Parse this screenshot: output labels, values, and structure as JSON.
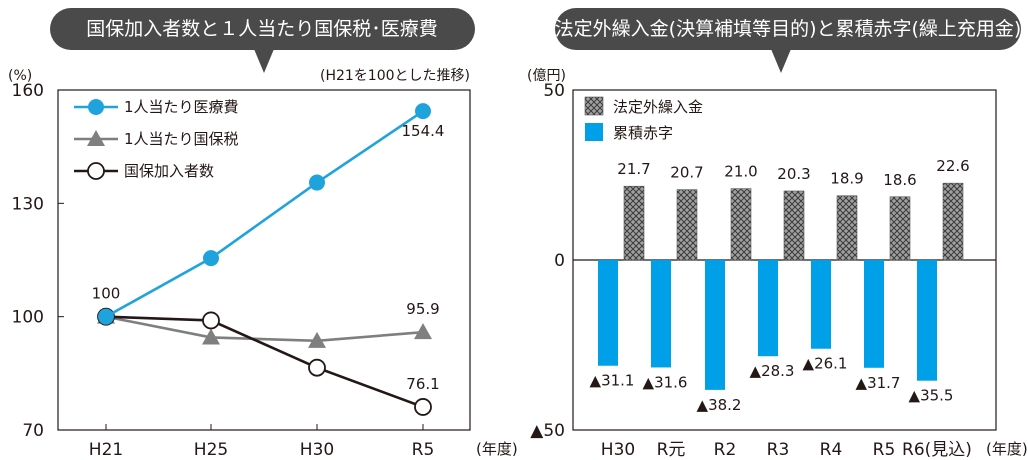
{
  "chart_data": [
    {
      "type": "line",
      "title": "国保加入者数と１人当たり国保税･医療費",
      "ylabel": "(%)",
      "note": "(H21を100とした推移)",
      "ylim": [
        70,
        160
      ],
      "yticks": [
        "70",
        "100",
        "130",
        "160"
      ],
      "categories": [
        "H21",
        "H25",
        "H30",
        "R5"
      ],
      "x_unit": "(年度)",
      "series": [
        {
          "name": "1人当たり医療費",
          "values": [
            100,
            115.5,
            135.5,
            154.4
          ],
          "color": "#1fa3dc",
          "marker": "circle"
        },
        {
          "name": "1人当たり国保税",
          "values": [
            100,
            94.5,
            93.6,
            95.9
          ],
          "color": "#7f7f7f",
          "marker": "triangle"
        },
        {
          "name": "国保加入者数",
          "values": [
            100,
            99.0,
            86.5,
            76.1
          ],
          "color": "#231815",
          "marker": "open-circle"
        }
      ],
      "data_labels": [
        {
          "series": 0,
          "index": 0,
          "text": "100"
        },
        {
          "series": 0,
          "index": 3,
          "text": "154.4"
        },
        {
          "series": 1,
          "index": 3,
          "text": "95.9"
        },
        {
          "series": 2,
          "index": 3,
          "text": "76.1"
        }
      ]
    },
    {
      "type": "bar",
      "title": "法定外繰入金(決算補填等目的)と累積赤字(繰上充用金)",
      "ylabel": "(億円)",
      "ylim": [
        -50,
        50
      ],
      "yticks": [
        "▲50",
        "0",
        "50"
      ],
      "categories": [
        "H30",
        "R元",
        "R2",
        "R3",
        "R4",
        "R5",
        "R6(見込)"
      ],
      "x_unit": "(年度)",
      "series": [
        {
          "name": "法定外繰入金",
          "values": [
            21.7,
            20.7,
            21.0,
            20.3,
            18.9,
            18.6,
            22.6
          ],
          "labels": [
            "21.7",
            "20.7",
            "21.0",
            "20.3",
            "18.9",
            "18.6",
            "22.6"
          ],
          "color": "#888888",
          "pattern": "crosshatch"
        },
        {
          "name": "累積赤字",
          "values": [
            -31.1,
            -31.6,
            -38.2,
            -28.3,
            -26.1,
            -31.7,
            -35.5
          ],
          "labels": [
            "▲31.1",
            "▲31.6",
            "▲38.2",
            "▲28.3",
            "▲26.1",
            "▲31.7",
            "▲35.5"
          ],
          "color": "#00a0e9"
        }
      ]
    }
  ]
}
